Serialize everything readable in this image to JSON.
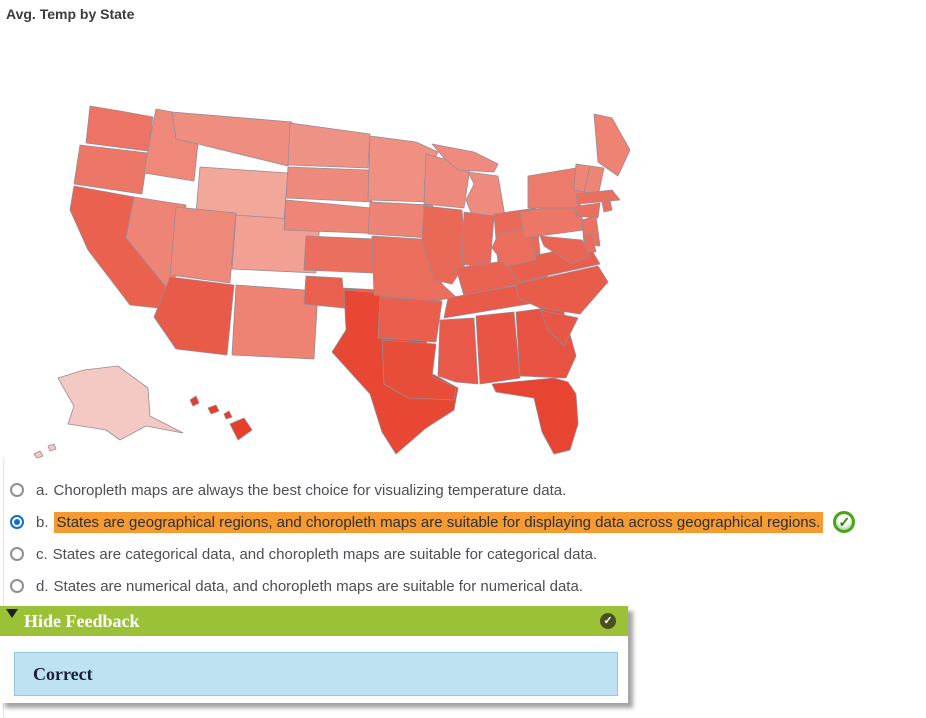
{
  "page_title": "Avg. Temp by State",
  "question": {
    "options": [
      {
        "letter": "a.",
        "text": "Choropleth maps are always the best choice for visualizing temperature data.",
        "selected": false,
        "highlighted": false,
        "correct_icon": false
      },
      {
        "letter": "b.",
        "text": "States are geographical regions, and choropleth maps are suitable for displaying data across geographical regions.",
        "selected": true,
        "highlighted": true,
        "correct_icon": true
      },
      {
        "letter": "c.",
        "text": "States are categorical data, and choropleth maps are suitable for categorical data.",
        "selected": false,
        "highlighted": false,
        "correct_icon": false
      },
      {
        "letter": "d.",
        "text": "States are numerical data, and choropleth maps are suitable for numerical data.",
        "selected": false,
        "highlighted": false,
        "correct_icon": false
      }
    ]
  },
  "feedback": {
    "toggle_label": "Hide Feedback",
    "result_text": "Correct"
  },
  "colors": {
    "highlight_orange": "#f59b31",
    "radio_selected_blue": "#0d6fc8",
    "radio_unselected_gray": "#8f8f8f",
    "feedback_header_green": "#9bc236",
    "feedback_box_blue": "#bfe2f3",
    "feedback_box_border": "#93c8de",
    "correct_badge_green": "#4ba317",
    "map_border": "#9a8a92"
  },
  "chart_data": {
    "type": "choropleth",
    "title": "Avg. Temp by State",
    "region": "United States",
    "encoding": "darker red = warmer average temperature, light pink = coldest",
    "states": [
      {
        "id": "WA",
        "name": "Washington",
        "fill": "#ed7464",
        "polys": [
          "60,18 90,23 123,29 118,63 56,55"
        ]
      },
      {
        "id": "OR",
        "name": "Oregon",
        "fill": "#ed7766",
        "polys": [
          "50,57 118,65 112,106 44,96"
        ]
      },
      {
        "id": "CA",
        "name": "California",
        "fill": "#ea6150",
        "polys": [
          "44,98 104,109 96,150 140,204 138,221 100,217 58,162 40,122"
        ]
      },
      {
        "id": "NV",
        "name": "Nevada",
        "fill": "#ee8475",
        "polys": [
          "104,109 156,117 147,184 140,204 96,150"
        ]
      },
      {
        "id": "ID",
        "name": "Idaho",
        "fill": "#ef8879",
        "polys": [
          "126,21 142,24 146,51 168,55 164,93 114,85 120,51"
        ]
      },
      {
        "id": "MT",
        "name": "Montana",
        "fill": "#ef8d7e",
        "polys": [
          "142,24 262,34 258,78 168,56 146,51"
        ]
      },
      {
        "id": "WY",
        "name": "Wyoming",
        "fill": "#f2a79b",
        "polys": [
          "170,79 258,85 254,131 166,125"
        ]
      },
      {
        "id": "UT",
        "name": "Utah",
        "fill": "#ee8878",
        "polys": [
          "146,119 206,125 200,195 140,187"
        ]
      },
      {
        "id": "CO",
        "name": "Colorado",
        "fill": "#f1a093",
        "polys": [
          "206,127 290,133 286,185 202,181"
        ]
      },
      {
        "id": "AZ",
        "name": "Arizona",
        "fill": "#e95b49",
        "polys": [
          "140,189 204,197 197,267 146,261 124,229"
        ]
      },
      {
        "id": "NM",
        "name": "New Mexico",
        "fill": "#ee8273",
        "polys": [
          "206,197 288,203 284,271 202,267"
        ]
      },
      {
        "id": "ND",
        "name": "North Dakota",
        "fill": "#ef9286",
        "polys": [
          "260,35 340,46 338,80 258,77"
        ]
      },
      {
        "id": "SD",
        "name": "South Dakota",
        "fill": "#ee8a7c",
        "polys": [
          "258,79 338,82 342,114 256,110"
        ]
      },
      {
        "id": "NE",
        "name": "Nebraska",
        "fill": "#ee8577",
        "polys": [
          "256,112 300,116 362,122 360,146 254,142"
        ]
      },
      {
        "id": "KS",
        "name": "Kansas",
        "fill": "#eb6f5e",
        "polys": [
          "276,148 368,152 366,186 274,182"
        ]
      },
      {
        "id": "OK",
        "name": "Oklahoma",
        "fill": "#e9604f",
        "polys": [
          "276,188 312,190 313,200 386,204 383,238 348,236 314,220 274,216"
        ]
      },
      {
        "id": "TX",
        "name": "Texas",
        "fill": "#e74733",
        "polys": [
          "314,202 350,205 351,240 396,243 399,284 428,300 424,322 396,340 366,366 352,344 340,306 302,264 316,242"
        ]
      },
      {
        "id": "MN",
        "name": "Minnesota",
        "fill": "#ef9083",
        "polys": [
          "340,48 386,54 408,64 394,94 400,114 338,112"
        ]
      },
      {
        "id": "IA",
        "name": "Iowa",
        "fill": "#ed8374",
        "polys": [
          "340,114 402,117 410,131 400,150 338,146"
        ]
      },
      {
        "id": "MO",
        "name": "Missouri",
        "fill": "#eb6d5c",
        "polys": [
          "342,148 406,152 412,196 426,209 404,213 344,207"
        ]
      },
      {
        "id": "AR",
        "name": "Arkansas",
        "fill": "#e95e4c",
        "polys": [
          "350,209 412,213 406,254 348,250"
        ]
      },
      {
        "id": "LA",
        "name": "Louisiana",
        "fill": "#e74d39",
        "polys": [
          "352,252 406,256 402,289 426,299 424,312 378,310 354,296"
        ]
      },
      {
        "id": "WI",
        "name": "Wisconsin",
        "fill": "#ee8a7d",
        "polys": [
          "396,66 418,72 440,80 434,120 394,116"
        ]
      },
      {
        "id": "MI",
        "name": "Michigan",
        "fill": "#ee8b7e",
        "polys": [
          "402,56 444,64 468,76 464,84 428,82 414,70",
          "438,84 468,88 476,134 444,132 436,112 444,96"
        ]
      },
      {
        "id": "IL",
        "name": "Illinois",
        "fill": "#ea6856",
        "polys": [
          "394,118 432,122 436,175 422,196 404,192 392,152"
        ]
      },
      {
        "id": "IN",
        "name": "Indiana",
        "fill": "#ea6958",
        "polys": [
          "434,124 464,128 460,180 432,176"
        ]
      },
      {
        "id": "OH",
        "name": "Ohio",
        "fill": "#ea6a59",
        "polys": [
          "464,126 506,120 510,166 468,176"
        ]
      },
      {
        "id": "KY",
        "name": "Kentucky",
        "fill": "#ea6251",
        "polys": [
          "426,180 510,168 518,190 434,208"
        ]
      },
      {
        "id": "TN",
        "name": "Tennessee",
        "fill": "#e95a48",
        "polys": [
          "418,210 518,192 522,212 414,230"
        ]
      },
      {
        "id": "MS",
        "name": "Mississippi",
        "fill": "#e9594a",
        "polys": [
          "410,232 444,230 448,296 426,294 408,288"
        ]
      },
      {
        "id": "AL",
        "name": "Alabama",
        "fill": "#e85544",
        "polys": [
          "446,228 484,224 490,290 464,294 450,296"
        ]
      },
      {
        "id": "GA",
        "name": "Georgia",
        "fill": "#e85242",
        "polys": [
          "486,224 532,218 546,268 536,290 490,288"
        ]
      },
      {
        "id": "FL",
        "name": "Florida",
        "fill": "#e74531",
        "polys": [
          "462,296 524,290 538,294 546,306 548,336 540,362 524,366 512,344 504,310 466,304"
        ]
      },
      {
        "id": "SC",
        "name": "South Carolina",
        "fill": "#e85745",
        "polys": [
          "510,222 548,230 534,258 518,242"
        ]
      },
      {
        "id": "NC",
        "name": "North Carolina",
        "fill": "#e95c4a",
        "polys": [
          "486,196 568,178 578,194 550,226 510,220 488,210"
        ]
      },
      {
        "id": "VA",
        "name": "Virginia",
        "fill": "#e95f4e",
        "polys": [
          "476,174 558,156 570,176 488,194"
        ]
      },
      {
        "id": "WV",
        "name": "West Virginia",
        "fill": "#eb6e5d",
        "polys": [
          "468,146 498,140 506,172 476,178 462,160"
        ]
      },
      {
        "id": "PA",
        "name": "Pennsylvania",
        "fill": "#ec7767",
        "polys": [
          "490,124 550,114 554,142 494,150"
        ]
      },
      {
        "id": "NY",
        "name": "New York",
        "fill": "#ed7b6b",
        "polys": [
          "498,88 546,80 560,94 552,112 546,114 550,120 498,120",
          "544,120 564,118 566,124 546,126"
        ]
      },
      {
        "id": "ME",
        "name": "Maine",
        "fill": "#ee8373",
        "polys": [
          "564,26 582,30 600,62 588,88 568,74"
        ]
      },
      {
        "id": "VT",
        "name": "Vermont",
        "fill": "#ee8576",
        "polys": [
          "546,76 560,78 554,104 544,102"
        ]
      },
      {
        "id": "NH",
        "name": "New Hampshire",
        "fill": "#ee8474",
        "polys": [
          "560,78 574,80 568,108 554,104"
        ]
      },
      {
        "id": "MA",
        "name": "Massachusetts",
        "fill": "#eb6f5f",
        "polys": [
          "546,106 582,102 590,112 548,116"
        ]
      },
      {
        "id": "CT",
        "name": "Connecticut",
        "fill": "#eb6e5e",
        "polys": [
          "548,118 570,115 568,130 546,128"
        ]
      },
      {
        "id": "RI",
        "name": "Rhode Island",
        "fill": "#eb6f5f",
        "polys": [
          "572,114 580,112 582,122 574,124"
        ]
      },
      {
        "id": "NJ",
        "name": "New Jersey",
        "fill": "#ec7262",
        "polys": [
          "552,132 566,128 570,158 554,156"
        ]
      },
      {
        "id": "DE",
        "name": "Delaware",
        "fill": "#eb6c5b",
        "polys": [
          "554,148 562,146 566,164 556,164"
        ]
      },
      {
        "id": "MD",
        "name": "Maryland",
        "fill": "#ea6554",
        "polys": [
          "510,148 552,152 560,168 542,176 514,158"
        ]
      },
      {
        "id": "AK",
        "name": "Alaska",
        "fill": "#f5c9c3",
        "polys": [
          "28,290 54,282 88,278 118,300 120,328 153,345 116,338 90,352 76,342 64,340 38,336 44,318",
          "4,366 10,363 13,368 7,370",
          "18,358 24,356 26,361 20,363"
        ]
      },
      {
        "id": "HI",
        "name": "Hawaii",
        "fill": "#e63e28",
        "polys": [
          "160,312 166,308 169,315 163,318",
          "178,320 186,317 189,323 181,326",
          "194,326 199,323 202,329 196,331",
          "200,336 214,330 222,342 208,352"
        ]
      }
    ]
  }
}
